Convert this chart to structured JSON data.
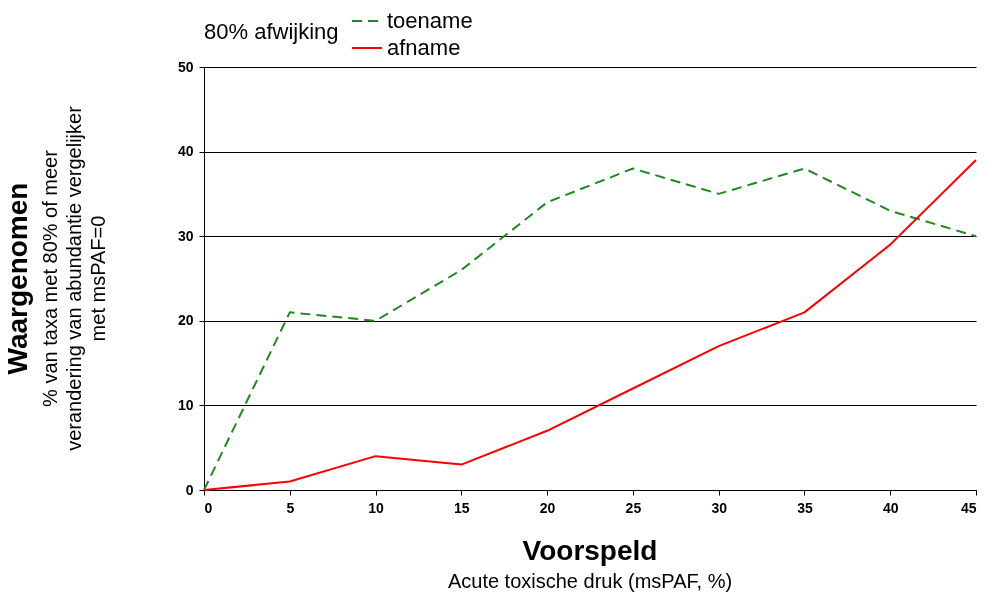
{
  "chart_data": {
    "type": "line",
    "xlabel": "Voorspeld\nAcute toxische druk (msPAF, %)",
    "ylabel": "Waargenomen\n% van taxa met 80% of meer\nverandering van abundantie vergelijker\nmet msPAF=0",
    "legend_title": "80% afwijking",
    "x": [
      0,
      5,
      10,
      15,
      20,
      25,
      30,
      35,
      40,
      45
    ],
    "series": [
      {
        "name": "toename",
        "color": "#1e8a1e",
        "line_style": "dashed",
        "values": [
          0,
          21,
          20,
          26,
          34,
          38,
          35,
          38,
          33,
          30
        ]
      },
      {
        "name": "afname",
        "color": "#ff0000",
        "line_style": "solid",
        "values": [
          0,
          1,
          4,
          3,
          7,
          12,
          17,
          21,
          29,
          39
        ]
      }
    ],
    "xlim": [
      0,
      45
    ],
    "xticks": [
      0,
      5,
      10,
      15,
      20,
      25,
      30,
      35,
      40,
      45
    ],
    "ylim": [
      0,
      50
    ],
    "yticks": [
      0,
      10,
      20,
      30,
      40,
      50
    ],
    "grid": "y",
    "legend": "top",
    "marker": "none"
  }
}
